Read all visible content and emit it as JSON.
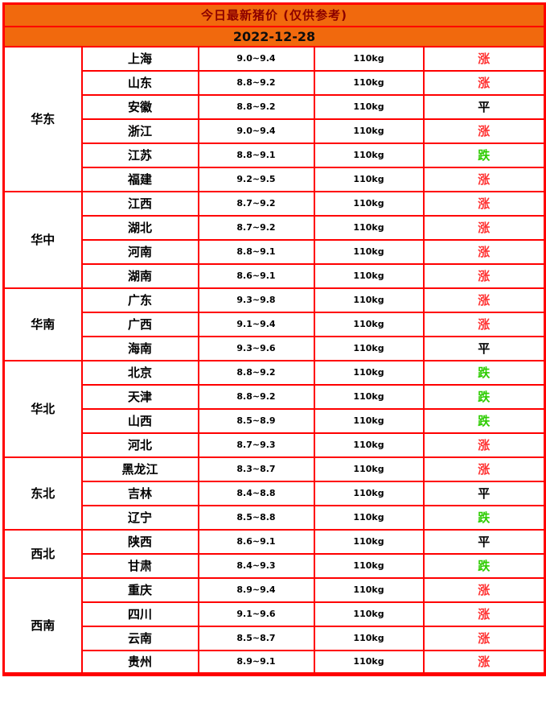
{
  "header": {
    "title": "今日最新猪价 (仅供参考)",
    "date": "2022-12-28"
  },
  "colors": {
    "header_bg": "#f1690d",
    "border_red": "#ff0000",
    "title_text": "#8b0000",
    "trend_up": "#ff3333",
    "trend_down": "#2dcc00",
    "trend_flat": "#000000"
  },
  "table": {
    "regions": [
      {
        "name": "华东",
        "rows": [
          {
            "province": "上海",
            "price": "9.0~9.4",
            "weight": "110kg",
            "trend": "涨",
            "trend_type": "up"
          },
          {
            "province": "山东",
            "price": "8.8~9.2",
            "weight": "110kg",
            "trend": "涨",
            "trend_type": "up"
          },
          {
            "province": "安徽",
            "price": "8.8~9.2",
            "weight": "110kg",
            "trend": "平",
            "trend_type": "flat"
          },
          {
            "province": "浙江",
            "price": "9.0~9.4",
            "weight": "110kg",
            "trend": "涨",
            "trend_type": "up"
          },
          {
            "province": "江苏",
            "price": "8.8~9.1",
            "weight": "110kg",
            "trend": "跌",
            "trend_type": "down"
          },
          {
            "province": "福建",
            "price": "9.2~9.5",
            "weight": "110kg",
            "trend": "涨",
            "trend_type": "up"
          }
        ]
      },
      {
        "name": "华中",
        "rows": [
          {
            "province": "江西",
            "price": "8.7~9.2",
            "weight": "110kg",
            "trend": "涨",
            "trend_type": "up"
          },
          {
            "province": "湖北",
            "price": "8.7~9.2",
            "weight": "110kg",
            "trend": "涨",
            "trend_type": "up"
          },
          {
            "province": "河南",
            "price": "8.8~9.1",
            "weight": "110kg",
            "trend": "涨",
            "trend_type": "up"
          },
          {
            "province": "湖南",
            "price": "8.6~9.1",
            "weight": "110kg",
            "trend": "涨",
            "trend_type": "up"
          }
        ]
      },
      {
        "name": "华南",
        "rows": [
          {
            "province": "广东",
            "price": "9.3~9.8",
            "weight": "110kg",
            "trend": "涨",
            "trend_type": "up"
          },
          {
            "province": "广西",
            "price": "9.1~9.4",
            "weight": "110kg",
            "trend": "涨",
            "trend_type": "up"
          },
          {
            "province": "海南",
            "price": "9.3~9.6",
            "weight": "110kg",
            "trend": "平",
            "trend_type": "flat"
          }
        ]
      },
      {
        "name": "华北",
        "rows": [
          {
            "province": "北京",
            "price": "8.8~9.2",
            "weight": "110kg",
            "trend": "跌",
            "trend_type": "down"
          },
          {
            "province": "天津",
            "price": "8.8~9.2",
            "weight": "110kg",
            "trend": "跌",
            "trend_type": "down"
          },
          {
            "province": "山西",
            "price": "8.5~8.9",
            "weight": "110kg",
            "trend": "跌",
            "trend_type": "down"
          },
          {
            "province": "河北",
            "price": "8.7~9.3",
            "weight": "110kg",
            "trend": "涨",
            "trend_type": "up"
          }
        ]
      },
      {
        "name": "东北",
        "rows": [
          {
            "province": "黑龙江",
            "price": "8.3~8.7",
            "weight": "110kg",
            "trend": "涨",
            "trend_type": "up"
          },
          {
            "province": "吉林",
            "price": "8.4~8.8",
            "weight": "110kg",
            "trend": "平",
            "trend_type": "flat"
          },
          {
            "province": "辽宁",
            "price": "8.5~8.8",
            "weight": "110kg",
            "trend": "跌",
            "trend_type": "down"
          }
        ]
      },
      {
        "name": "西北",
        "rows": [
          {
            "province": "陕西",
            "price": "8.6~9.1",
            "weight": "110kg",
            "trend": "平",
            "trend_type": "flat"
          },
          {
            "province": "甘肃",
            "price": "8.4~9.3",
            "weight": "110kg",
            "trend": "跌",
            "trend_type": "down"
          }
        ]
      },
      {
        "name": "西南",
        "rows": [
          {
            "province": "重庆",
            "price": "8.9~9.4",
            "weight": "110kg",
            "trend": "涨",
            "trend_type": "up"
          },
          {
            "province": "四川",
            "price": "9.1~9.6",
            "weight": "110kg",
            "trend": "涨",
            "trend_type": "up"
          },
          {
            "province": "云南",
            "price": "8.5~8.7",
            "weight": "110kg",
            "trend": "涨",
            "trend_type": "up"
          },
          {
            "province": "贵州",
            "price": "8.9~9.1",
            "weight": "110kg",
            "trend": "涨",
            "trend_type": "up"
          }
        ]
      }
    ]
  }
}
